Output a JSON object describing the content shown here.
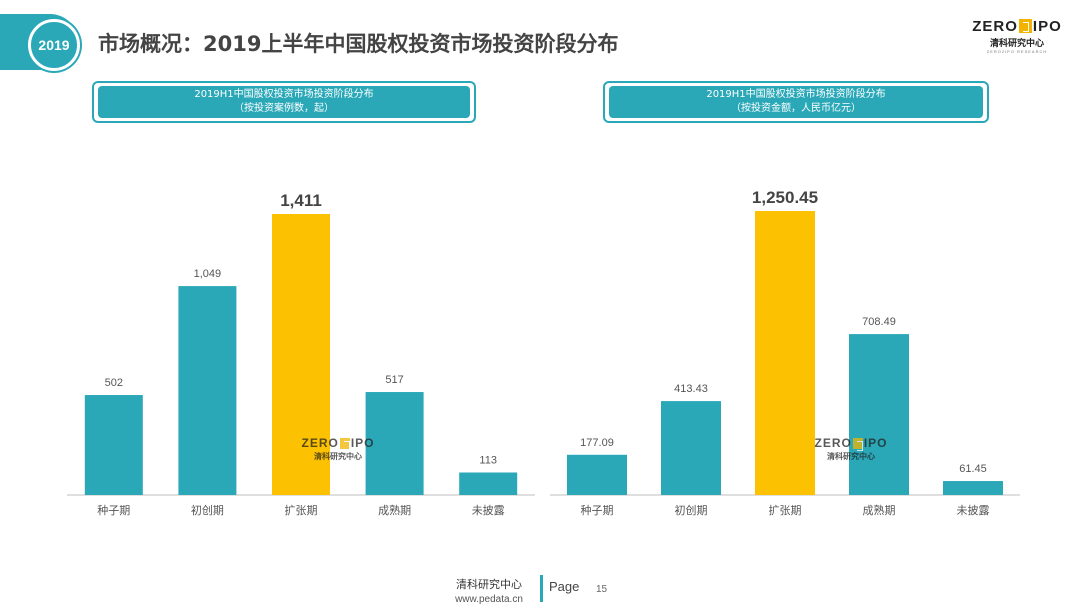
{
  "header": {
    "year": "2019",
    "title": "市场概况：2019上半年中国股权投资市场投资阶段分布"
  },
  "logo": {
    "word_left": "ZERO",
    "word_right": "IPO",
    "sub": "清科研究中心",
    "sub_en": "ZERO2IPO RESEARCH"
  },
  "colors": {
    "accent": "#2aa8b8",
    "highlight": "#fcc100"
  },
  "chart_data": [
    {
      "type": "bar",
      "title": "2019H1中国股权投资市场投资阶段分布",
      "subtitle": "（按投资案例数，起）",
      "categories": [
        "种子期",
        "初创期",
        "扩张期",
        "成熟期",
        "未披露"
      ],
      "values": [
        502,
        1049,
        1411,
        517,
        113
      ],
      "value_labels": [
        "502",
        "1,049",
        "1,411",
        "517",
        "113"
      ],
      "highlight_index": 2,
      "ylim": [
        0,
        1411
      ]
    },
    {
      "type": "bar",
      "title": "2019H1中国股权投资市场投资阶段分布",
      "subtitle": "（按投资金额，人民币亿元）",
      "categories": [
        "种子期",
        "初创期",
        "扩张期",
        "成熟期",
        "未披露"
      ],
      "values": [
        177.09,
        413.43,
        1250.45,
        708.49,
        61.45
      ],
      "value_labels": [
        "177.09",
        "413.43",
        "1,250.45",
        "708.49",
        "61.45"
      ],
      "highlight_index": 2,
      "ylim": [
        0,
        1250.45
      ]
    }
  ],
  "footer": {
    "org": "清科研究中心",
    "url": "www.pedata.cn",
    "page_label": "Page",
    "page_number": "15"
  }
}
